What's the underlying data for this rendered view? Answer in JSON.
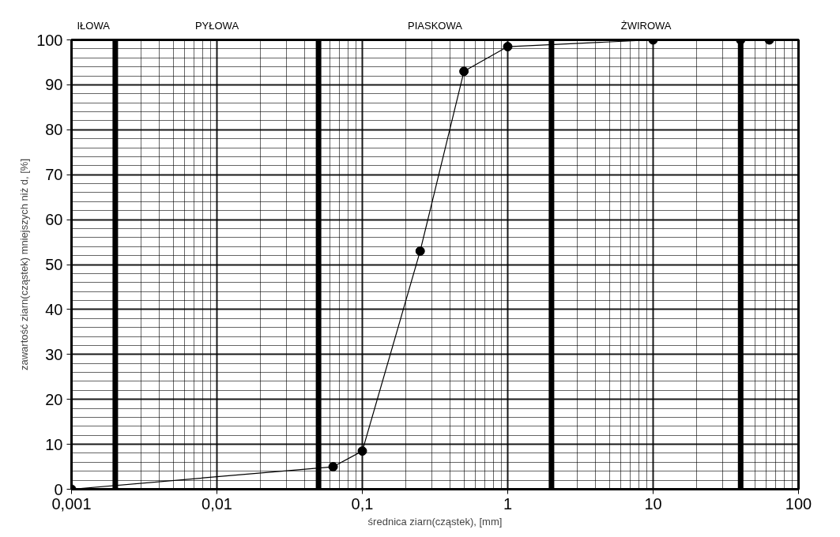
{
  "chart_data": {
    "type": "line",
    "xlabel": "średnica ziarn(cząstek), [mm]",
    "ylabel": "zawartość ziarn(cząstek) mniejszych niż d, [%]",
    "annotations": [
      "IŁOWA",
      "PYŁOWA",
      "PIASKOWA",
      "ŻWIROWA"
    ],
    "x": [
      0.001,
      0.063,
      0.1,
      0.25,
      0.5,
      1,
      10,
      40,
      63
    ],
    "series": [
      {
        "color": "#000000",
        "values": [
          0,
          5,
          8.5,
          53,
          93,
          98.5,
          100,
          100,
          100
        ]
      }
    ],
    "log": "x",
    "xlim": [
      0.001,
      100
    ],
    "xticks": [
      {
        "value": 0.001,
        "label": "0,001"
      },
      {
        "value": 0.01,
        "label": "0,01"
      },
      {
        "value": 0.1,
        "label": "0,1"
      },
      1,
      10,
      100
    ],
    "ylim": [
      0,
      100
    ],
    "yticks": [
      0,
      10,
      20,
      30,
      40,
      50,
      60,
      70,
      80,
      90,
      100
    ],
    "ref_lines": [
      {
        "axis": "x",
        "value": 0.002,
        "color": "#000000"
      },
      {
        "axis": "x",
        "value": 0.05,
        "color": "#000000"
      },
      {
        "axis": "x",
        "value": 2,
        "color": "#000000"
      },
      {
        "axis": "x",
        "value": 40,
        "color": "#000000"
      }
    ],
    "grid": true,
    "marker": "circle",
    "line_style": "solid"
  }
}
